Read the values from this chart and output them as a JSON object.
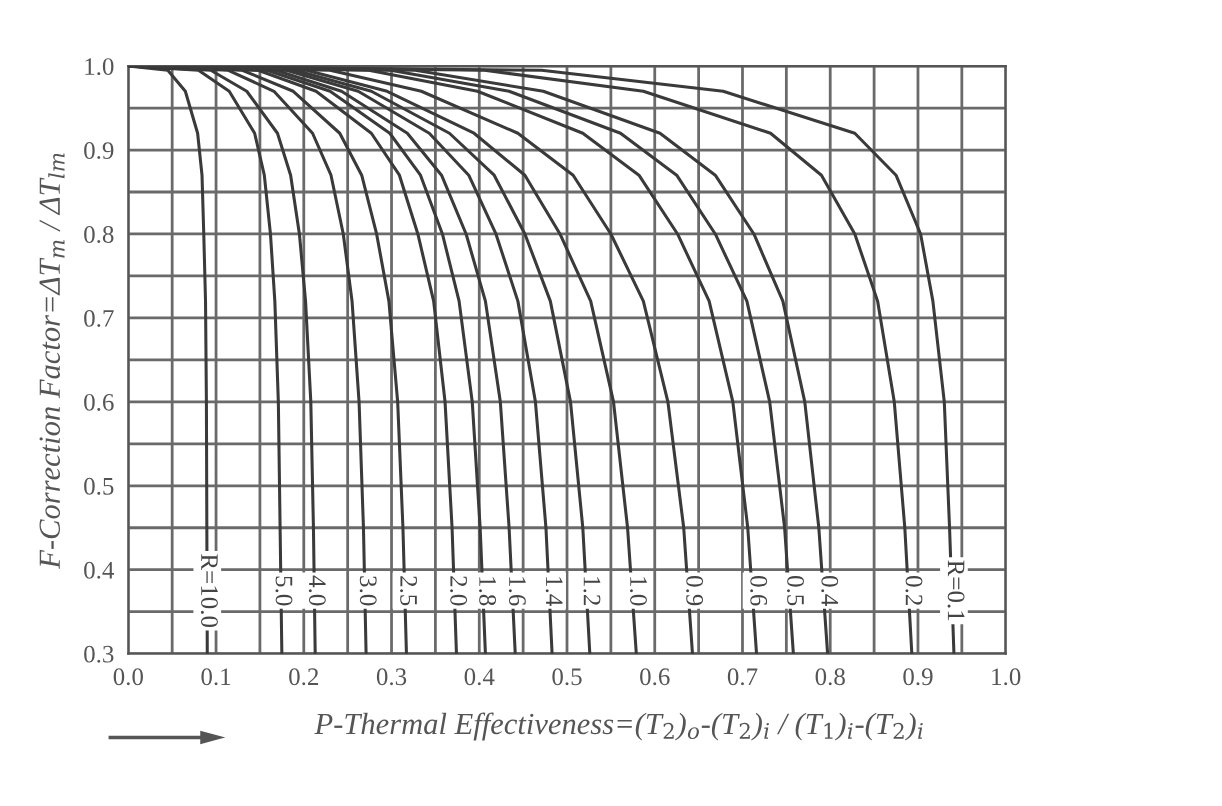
{
  "chart_data": {
    "type": "line",
    "xlabel": "P-Thermal Effectiveness=(T$_{2}$)$_{o}$-(T$_{2}$)$_{i}$ / (T$_{1}$)$_{i}$-(T$_{2}$)$_{i}$",
    "ylabel": "F-Correction Factor=ΔT$_{m}$ / ΔT$_{lm}$",
    "xlim": [
      0.0,
      1.0
    ],
    "ylim": [
      0.3,
      1.0
    ],
    "xticks": [
      {
        "value": 0.0,
        "label": "0.0"
      },
      {
        "value": 0.05,
        "label": null
      },
      {
        "value": 0.1,
        "label": "0.1"
      },
      {
        "value": 0.15,
        "label": null
      },
      {
        "value": 0.2,
        "label": "0.2"
      },
      {
        "value": 0.25,
        "label": null
      },
      {
        "value": 0.3,
        "label": "0.3"
      },
      {
        "value": 0.35,
        "label": null
      },
      {
        "value": 0.4,
        "label": "0.4"
      },
      {
        "value": 0.45,
        "label": null
      },
      {
        "value": 0.5,
        "label": "0.5"
      },
      {
        "value": 0.55,
        "label": null
      },
      {
        "value": 0.6,
        "label": "0.6"
      },
      {
        "value": 0.65,
        "label": null
      },
      {
        "value": 0.7,
        "label": "0.7"
      },
      {
        "value": 0.75,
        "label": null
      },
      {
        "value": 0.8,
        "label": "0.8"
      },
      {
        "value": 0.85,
        "label": null
      },
      {
        "value": 0.9,
        "label": "0.9"
      },
      {
        "value": 0.95,
        "label": null
      },
      {
        "value": 1.0,
        "label": "1.0"
      }
    ],
    "yticks": [
      {
        "value": 0.3,
        "label": "0.3"
      },
      {
        "value": 0.35,
        "label": null
      },
      {
        "value": 0.4,
        "label": "0.4"
      },
      {
        "value": 0.45,
        "label": null
      },
      {
        "value": 0.5,
        "label": "0.5"
      },
      {
        "value": 0.55,
        "label": null
      },
      {
        "value": 0.6,
        "label": "0.6"
      },
      {
        "value": 0.65,
        "label": null
      },
      {
        "value": 0.7,
        "label": "0.7"
      },
      {
        "value": 0.75,
        "label": null
      },
      {
        "value": 0.8,
        "label": "0.8"
      },
      {
        "value": 0.85,
        "label": null
      },
      {
        "value": 0.9,
        "label": "0.9"
      },
      {
        "value": 0.95,
        "label": null
      },
      {
        "value": 1.0,
        "label": "1.0"
      }
    ],
    "grid": true,
    "marker": "none",
    "line_style": "solid",
    "series": [
      {
        "name": "R=10.0",
        "color": "#3a3a3a",
        "x": [
          0,
          0.045,
          0.065,
          0.079,
          0.084,
          0.086,
          0.088,
          0.089,
          0.0895,
          0.09
        ],
        "values": [
          1.0,
          0.995,
          0.97,
          0.92,
          0.87,
          0.8,
          0.72,
          0.6,
          0.45,
          0.3
        ]
      },
      {
        "name": "5.0",
        "color": "#3a3a3a",
        "x": [
          0,
          0.08,
          0.115,
          0.144,
          0.155,
          0.162,
          0.167,
          0.171,
          0.173,
          0.175
        ],
        "values": [
          1.0,
          0.995,
          0.97,
          0.92,
          0.87,
          0.8,
          0.72,
          0.6,
          0.45,
          0.3
        ]
      },
      {
        "name": "4.0",
        "color": "#3a3a3a",
        "x": [
          0,
          0.094,
          0.135,
          0.17,
          0.185,
          0.195,
          0.202,
          0.208,
          0.211,
          0.213
        ],
        "values": [
          1.0,
          0.995,
          0.97,
          0.92,
          0.87,
          0.8,
          0.72,
          0.6,
          0.45,
          0.3
        ]
      },
      {
        "name": "3.0",
        "color": "#3a3a3a",
        "x": [
          0,
          0.114,
          0.166,
          0.21,
          0.231,
          0.245,
          0.255,
          0.263,
          0.268,
          0.271
        ],
        "values": [
          1.0,
          0.995,
          0.97,
          0.92,
          0.87,
          0.8,
          0.72,
          0.6,
          0.45,
          0.3
        ]
      },
      {
        "name": "2.5",
        "color": "#3a3a3a",
        "x": [
          0,
          0.13,
          0.188,
          0.241,
          0.266,
          0.283,
          0.297,
          0.307,
          0.313,
          0.317
        ],
        "values": [
          1.0,
          0.995,
          0.97,
          0.92,
          0.87,
          0.8,
          0.72,
          0.6,
          0.45,
          0.3
        ]
      },
      {
        "name": "2.0",
        "color": "#3a3a3a",
        "x": [
          0,
          0.148,
          0.214,
          0.277,
          0.309,
          0.33,
          0.348,
          0.361,
          0.369,
          0.374
        ],
        "values": [
          1.0,
          0.995,
          0.97,
          0.92,
          0.87,
          0.8,
          0.72,
          0.6,
          0.45,
          0.3
        ]
      },
      {
        "name": "1.8",
        "color": "#3a3a3a",
        "x": [
          0,
          0.158,
          0.23,
          0.298,
          0.333,
          0.358,
          0.377,
          0.392,
          0.401,
          0.407
        ],
        "values": [
          1.0,
          0.995,
          0.97,
          0.92,
          0.87,
          0.8,
          0.72,
          0.6,
          0.45,
          0.3
        ]
      },
      {
        "name": "1.6",
        "color": "#3a3a3a",
        "x": [
          0,
          0.168,
          0.243,
          0.318,
          0.357,
          0.385,
          0.407,
          0.424,
          0.434,
          0.441
        ],
        "values": [
          1.0,
          0.995,
          0.97,
          0.92,
          0.87,
          0.8,
          0.72,
          0.6,
          0.45,
          0.3
        ]
      },
      {
        "name": "1.4",
        "color": "#3a3a3a",
        "x": [
          0,
          0.18,
          0.262,
          0.343,
          0.388,
          0.419,
          0.444,
          0.464,
          0.476,
          0.483
        ],
        "values": [
          1.0,
          0.995,
          0.97,
          0.92,
          0.87,
          0.8,
          0.72,
          0.6,
          0.45,
          0.3
        ]
      },
      {
        "name": "1.2",
        "color": "#3a3a3a",
        "x": [
          0,
          0.19,
          0.277,
          0.366,
          0.417,
          0.452,
          0.481,
          0.504,
          0.518,
          0.526
        ],
        "values": [
          1.0,
          0.995,
          0.97,
          0.92,
          0.87,
          0.8,
          0.72,
          0.6,
          0.45,
          0.3
        ]
      },
      {
        "name": "1.0",
        "color": "#3a3a3a",
        "x": [
          0,
          0.203,
          0.295,
          0.394,
          0.452,
          0.492,
          0.527,
          0.553,
          0.569,
          0.579
        ],
        "values": [
          1.0,
          0.995,
          0.97,
          0.92,
          0.87,
          0.8,
          0.72,
          0.6,
          0.45,
          0.3
        ]
      },
      {
        "name": "0.9",
        "color": "#3a3a3a",
        "x": [
          0,
          0.23,
          0.334,
          0.444,
          0.507,
          0.55,
          0.587,
          0.615,
          0.633,
          0.643
        ],
        "values": [
          1.0,
          0.995,
          0.97,
          0.92,
          0.87,
          0.8,
          0.72,
          0.6,
          0.45,
          0.3
        ]
      },
      {
        "name": "0.6",
        "color": "#3a3a3a",
        "x": [
          0,
          0.274,
          0.398,
          0.518,
          0.582,
          0.626,
          0.662,
          0.689,
          0.706,
          0.716
        ],
        "values": [
          1.0,
          0.995,
          0.97,
          0.92,
          0.87,
          0.8,
          0.72,
          0.6,
          0.45,
          0.3
        ]
      },
      {
        "name": "0.5",
        "color": "#3a3a3a",
        "x": [
          0,
          0.299,
          0.434,
          0.561,
          0.625,
          0.669,
          0.705,
          0.731,
          0.748,
          0.758
        ],
        "values": [
          1.0,
          0.995,
          0.97,
          0.92,
          0.87,
          0.8,
          0.72,
          0.6,
          0.45,
          0.3
        ]
      },
      {
        "name": "0.4",
        "color": "#3a3a3a",
        "x": [
          0,
          0.327,
          0.473,
          0.606,
          0.669,
          0.713,
          0.746,
          0.771,
          0.787,
          0.797
        ],
        "values": [
          1.0,
          0.995,
          0.97,
          0.92,
          0.87,
          0.8,
          0.72,
          0.6,
          0.45,
          0.3
        ]
      },
      {
        "name": "0.2",
        "color": "#3a3a3a",
        "x": [
          0,
          0.406,
          0.587,
          0.732,
          0.79,
          0.828,
          0.854,
          0.873,
          0.885,
          0.893
        ],
        "values": [
          1.0,
          0.995,
          0.97,
          0.92,
          0.87,
          0.8,
          0.72,
          0.6,
          0.45,
          0.3
        ]
      },
      {
        "name": "R=0.1",
        "color": "#3a3a3a",
        "x": [
          0,
          0.471,
          0.678,
          0.828,
          0.875,
          0.903,
          0.917,
          0.93,
          0.936,
          0.941
        ],
        "values": [
          1.0,
          0.995,
          0.97,
          0.92,
          0.87,
          0.8,
          0.72,
          0.6,
          0.45,
          0.3
        ]
      }
    ]
  }
}
